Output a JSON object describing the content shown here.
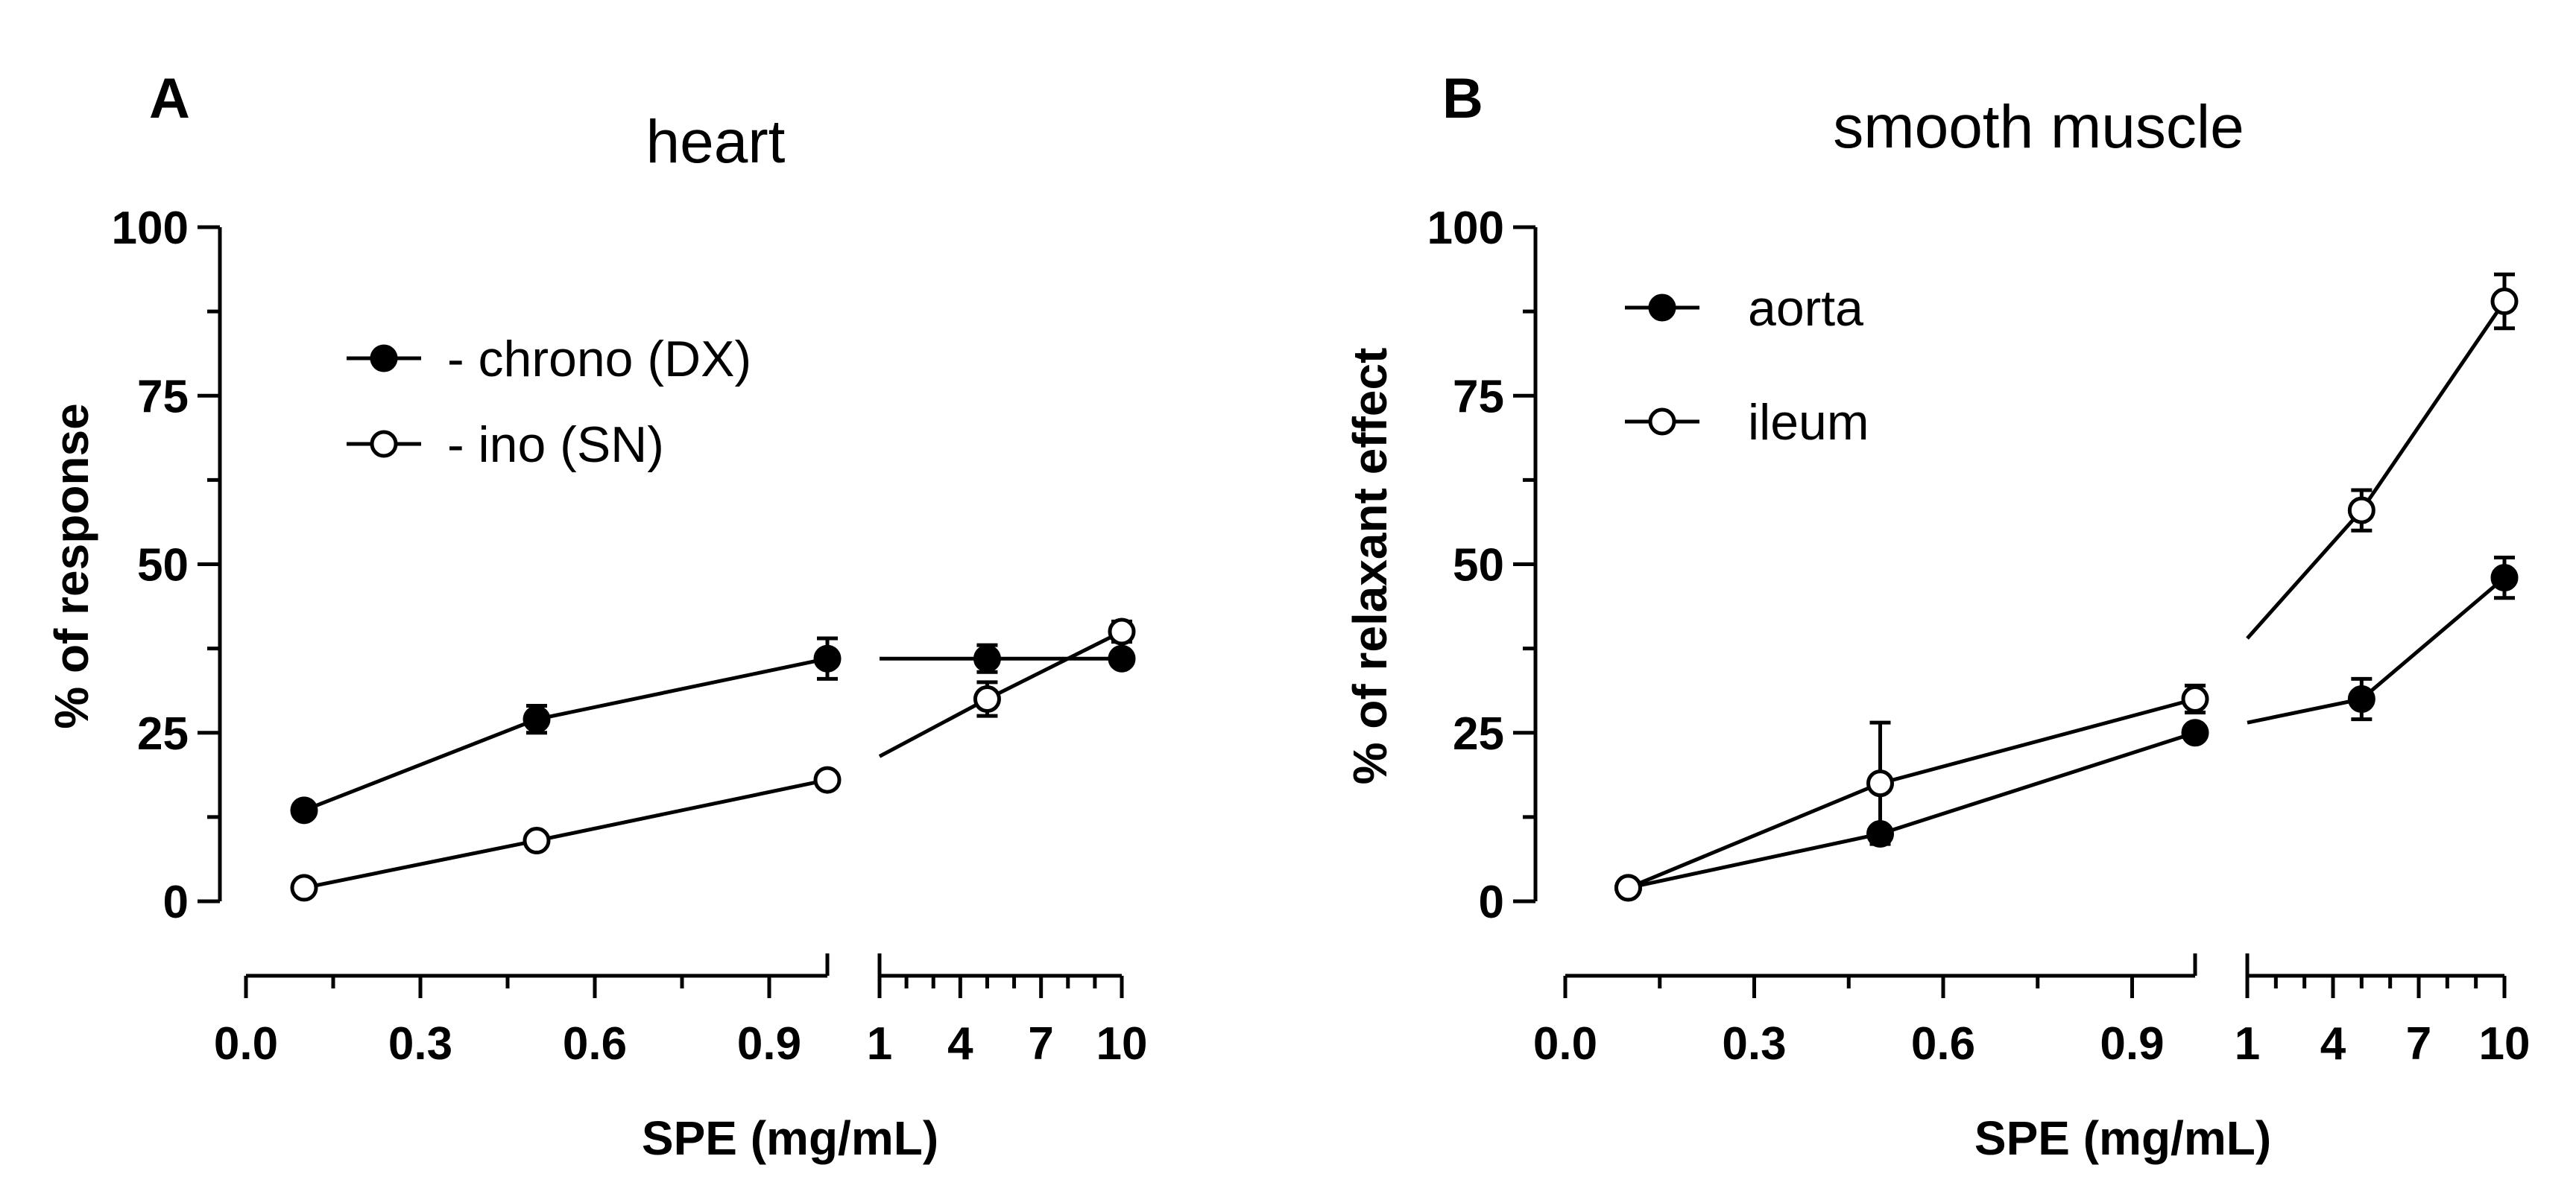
{
  "chart_data": [
    {
      "type": "line",
      "panel": "A",
      "title": "heart",
      "ylabel": "% of response",
      "xlabel": "SPE (mg/mL)",
      "ylim": [
        0,
        100
      ],
      "yticks": [
        0,
        25,
        50,
        75,
        100
      ],
      "x_segment1": {
        "range": [
          0,
          1
        ],
        "ticks": [
          "0.0",
          "0.3",
          "0.6",
          "0.9"
        ],
        "tick_values": [
          0,
          0.3,
          0.6,
          0.9
        ]
      },
      "x_segment2": {
        "range": [
          1,
          10
        ],
        "ticks": [
          "1",
          "4",
          "7",
          "10"
        ],
        "tick_values": [
          1,
          4,
          7,
          10
        ]
      },
      "legend_position": "top-left",
      "series": [
        {
          "name": "- chrono (DX)",
          "marker": "filled",
          "segment1": {
            "x": [
              0.1,
              0.5,
              1.0
            ],
            "y": [
              13.5,
              27,
              36
            ],
            "err": [
              0,
              2,
              3
            ]
          },
          "segment2": {
            "x": [
              5,
              10
            ],
            "y": [
              36,
              36
            ],
            "err": [
              2,
              0
            ],
            "line_start": {
              "x": 1,
              "y": 36
            }
          }
        },
        {
          "name": "- ino (SN)",
          "marker": "open",
          "segment1": {
            "x": [
              0.1,
              0.5,
              1.0
            ],
            "y": [
              2,
              9,
              18
            ],
            "err": [
              0,
              0,
              0
            ]
          },
          "segment2": {
            "x": [
              5,
              10
            ],
            "y": [
              30,
              40
            ],
            "err": [
              2.5,
              1.5
            ],
            "line_start": {
              "x": 1,
              "y": 21.5
            }
          }
        }
      ]
    },
    {
      "type": "line",
      "panel": "B",
      "title": "smooth muscle",
      "ylabel": "% of relaxant  effect",
      "xlabel": "SPE (mg/mL)",
      "ylim": [
        0,
        100
      ],
      "yticks": [
        0,
        25,
        50,
        75,
        100
      ],
      "x_segment1": {
        "range": [
          0,
          1
        ],
        "ticks": [
          "0.0",
          "0.3",
          "0.6",
          "0.9"
        ],
        "tick_values": [
          0,
          0.3,
          0.6,
          0.9
        ]
      },
      "x_segment2": {
        "range": [
          1,
          10
        ],
        "ticks": [
          "1",
          "4",
          "7",
          "10"
        ],
        "tick_values": [
          1,
          4,
          7,
          10
        ]
      },
      "legend_position": "top-left",
      "series": [
        {
          "name": "aorta",
          "marker": "filled",
          "segment1": {
            "x": [
              0.1,
              0.5,
              1.0
            ],
            "y": [
              2,
              10,
              25
            ],
            "err": [
              0,
              0,
              0
            ]
          },
          "segment2": {
            "x": [
              5,
              10
            ],
            "y": [
              30,
              48
            ],
            "err": [
              3,
              3
            ],
            "line_start": {
              "x": 1,
              "y": 26.5
            }
          }
        },
        {
          "name": "ileum",
          "marker": "open",
          "segment1": {
            "x": [
              0.1,
              0.5,
              1.0
            ],
            "y": [
              2,
              17.5,
              30
            ],
            "err": [
              0,
              9,
              2
            ]
          },
          "segment2": {
            "x": [
              5,
              10
            ],
            "y": [
              58,
              89
            ],
            "err": [
              3,
              4
            ],
            "line_start": {
              "x": 1,
              "y": 39
            }
          }
        }
      ]
    }
  ]
}
